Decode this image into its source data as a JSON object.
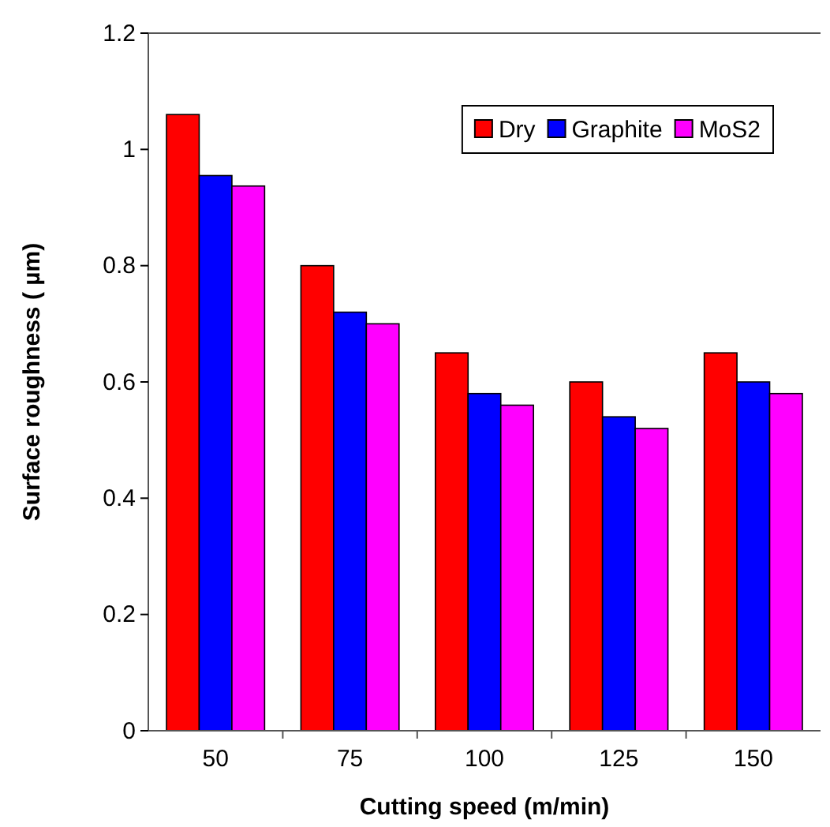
{
  "chart_data": {
    "type": "bar",
    "xlabel": "Cutting speed (m/min)",
    "ylabel": "Surface roughness ( µm)",
    "categories": [
      "50",
      "75",
      "100",
      "125",
      "150"
    ],
    "series": [
      {
        "name": "Dry",
        "color": "#ff0000",
        "values": [
          1.06,
          0.8,
          0.65,
          0.6,
          0.65
        ]
      },
      {
        "name": "Graphite",
        "color": "#0000ff",
        "values": [
          0.955,
          0.72,
          0.58,
          0.54,
          0.6
        ]
      },
      {
        "name": "MoS2",
        "color": "#ff00ff",
        "values": [
          0.937,
          0.7,
          0.56,
          0.52,
          0.58
        ]
      }
    ],
    "ylim": [
      0,
      1.2
    ],
    "yticks": [
      0,
      0.2,
      0.4,
      0.6,
      0.8,
      1,
      1.2
    ],
    "grid": false,
    "legend": "top right"
  }
}
